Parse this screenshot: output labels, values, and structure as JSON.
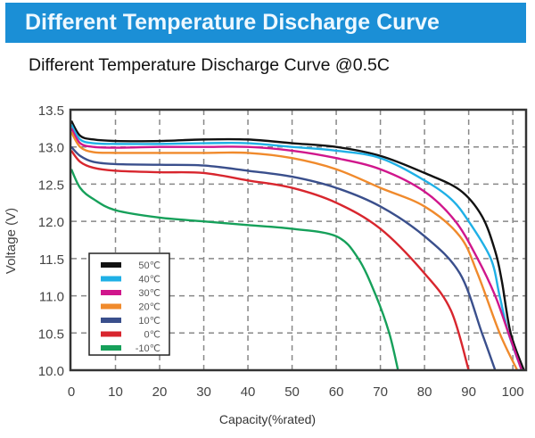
{
  "header": {
    "banner_title": "Different Temperature Discharge Curve"
  },
  "chart_data": {
    "type": "line",
    "title": "Different Temperature Discharge Curve @0.5C",
    "xlabel": "Capacity(%rated)",
    "ylabel": "Voltage (V)",
    "xlim": [
      0,
      103
    ],
    "ylim": [
      10.0,
      13.5
    ],
    "xticks": [
      "0",
      "10",
      "20",
      "30",
      "40",
      "50",
      "60",
      "70",
      "80",
      "90",
      "100"
    ],
    "yticks": [
      "10.0",
      "10.5",
      "11.0",
      "11.5",
      "12.0",
      "12.5",
      "13.0",
      "13.5"
    ],
    "grid": true,
    "legend_position": "bottom-left",
    "series": [
      {
        "name": "50℃",
        "color": "#111111",
        "x": [
          0,
          2,
          5,
          10,
          20,
          30,
          40,
          50,
          60,
          70,
          80,
          88,
          93,
          96,
          97.5,
          99.5,
          102.5
        ],
        "y": [
          13.35,
          13.15,
          13.1,
          13.08,
          13.08,
          13.1,
          13.1,
          13.05,
          13.0,
          12.88,
          12.65,
          12.42,
          12.07,
          11.6,
          11.2,
          10.5,
          10.0
        ]
      },
      {
        "name": "40℃",
        "color": "#1fb0e6",
        "x": [
          0,
          2,
          5,
          10,
          20,
          30,
          40,
          50,
          60,
          70,
          80,
          86,
          90,
          95,
          97,
          99,
          102
        ],
        "y": [
          13.3,
          13.1,
          13.05,
          13.04,
          13.04,
          13.05,
          13.05,
          13.0,
          12.95,
          12.85,
          12.55,
          12.3,
          12.0,
          11.5,
          11.0,
          10.5,
          10.0
        ]
      },
      {
        "name": "30℃",
        "color": "#d0168c",
        "x": [
          0,
          2,
          5,
          10,
          20,
          30,
          40,
          50,
          60,
          70,
          80,
          87,
          92,
          96,
          99,
          102
        ],
        "y": [
          13.25,
          13.05,
          13.0,
          12.99,
          13.0,
          13.0,
          13.0,
          12.95,
          12.85,
          12.7,
          12.4,
          12.0,
          11.5,
          11.0,
          10.5,
          10.0
        ]
      },
      {
        "name": "20℃",
        "color": "#f08a2c",
        "x": [
          0,
          2,
          5,
          10,
          20,
          30,
          40,
          50,
          60,
          70,
          80,
          88,
          92,
          97,
          101
        ],
        "y": [
          13.2,
          13.0,
          12.93,
          12.92,
          12.92,
          12.92,
          12.92,
          12.85,
          12.7,
          12.45,
          12.2,
          11.8,
          11.3,
          10.5,
          10.0
        ]
      },
      {
        "name": "10℃",
        "color": "#3a4f8c",
        "x": [
          0,
          2,
          5,
          10,
          20,
          30,
          40,
          50,
          60,
          70,
          80,
          88,
          93,
          96
        ],
        "y": [
          13.0,
          12.88,
          12.8,
          12.77,
          12.76,
          12.75,
          12.68,
          12.6,
          12.45,
          12.2,
          11.8,
          11.3,
          10.5,
          10.0
        ]
      },
      {
        "name": "0℃",
        "color": "#d8262e",
        "x": [
          0,
          2,
          5,
          10,
          20,
          30,
          40,
          50,
          60,
          70,
          80,
          86,
          90
        ],
        "y": [
          12.95,
          12.8,
          12.72,
          12.68,
          12.66,
          12.65,
          12.55,
          12.45,
          12.25,
          11.9,
          11.3,
          10.8,
          10.0
        ]
      },
      {
        "name": "-10℃",
        "color": "#16a05a",
        "x": [
          0,
          2,
          5,
          10,
          20,
          30,
          40,
          50,
          60,
          65,
          69,
          72,
          74
        ],
        "y": [
          12.7,
          12.45,
          12.3,
          12.15,
          12.05,
          12.0,
          11.95,
          11.9,
          11.8,
          11.5,
          11.0,
          10.5,
          10.0
        ]
      }
    ]
  }
}
